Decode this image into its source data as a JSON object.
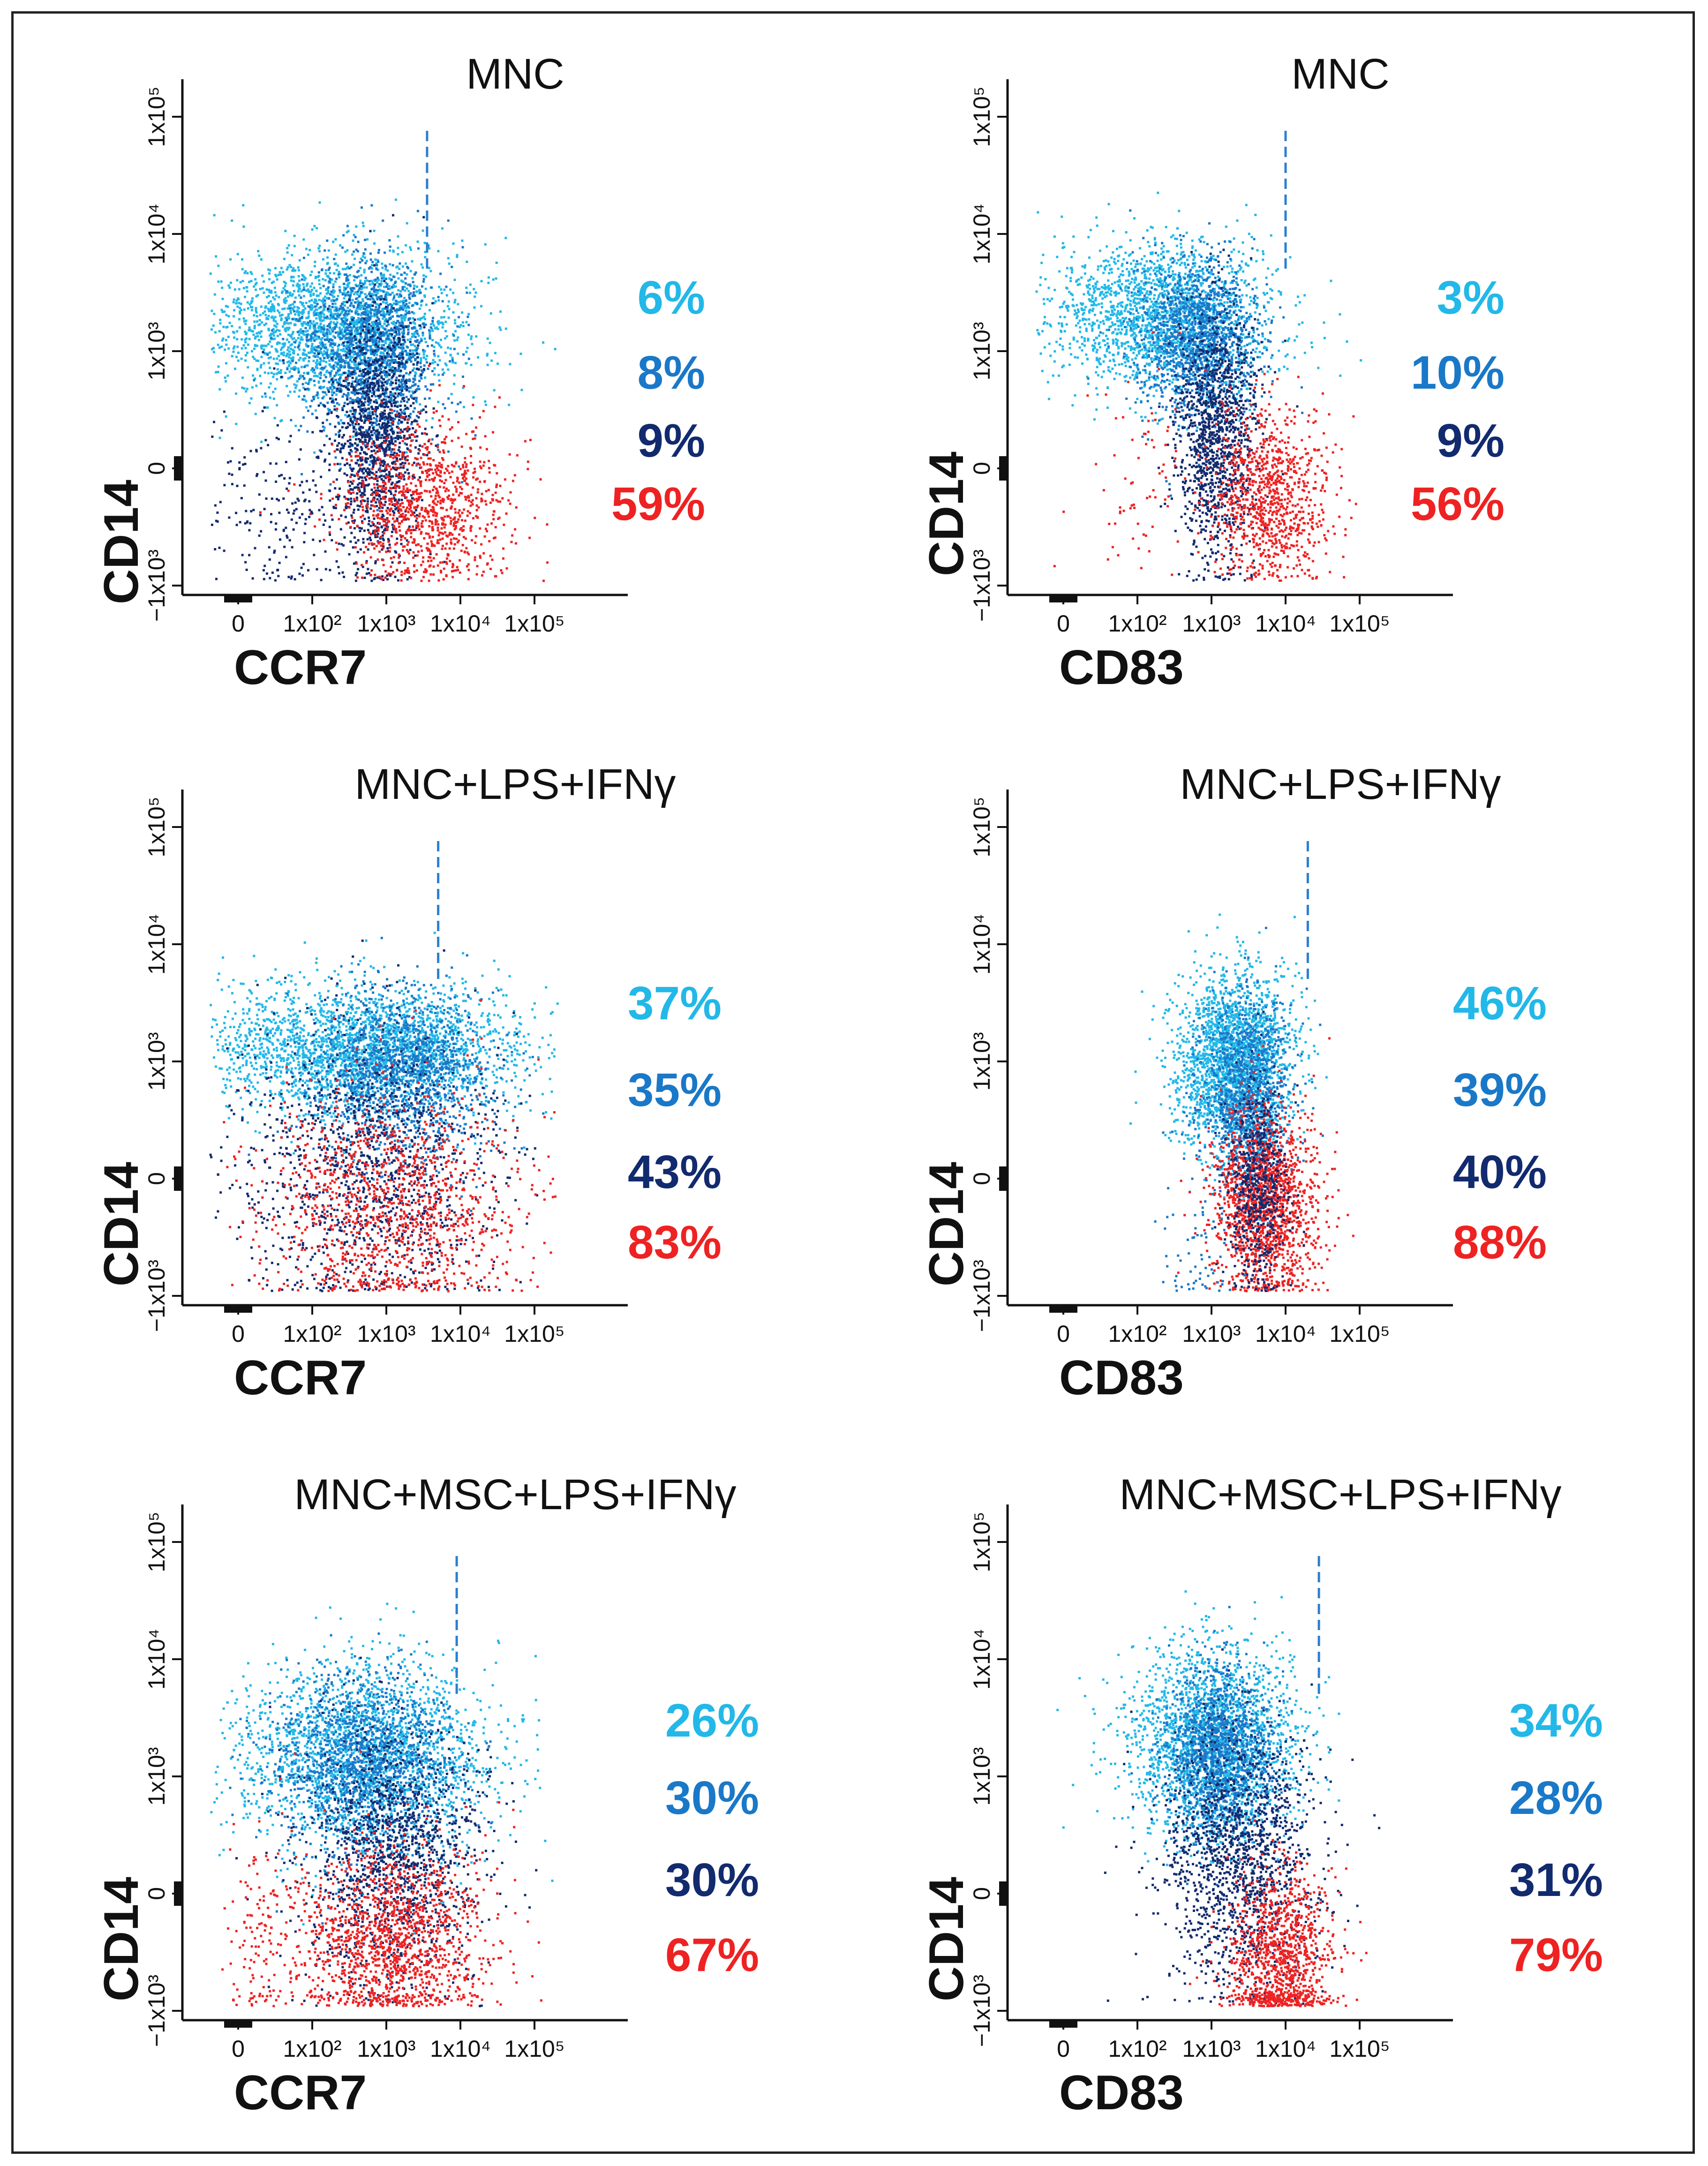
{
  "colors": {
    "light_blue": "#22b8e8",
    "mid_blue": "#1a78c8",
    "navy": "#122a6e",
    "red": "#ee2222",
    "gate_line": "#2a7fd0",
    "axis": "#111111"
  },
  "axis_ticks": {
    "x": [
      "0",
      "1x10²",
      "1x10³",
      "1x10⁴",
      "1x10⁵"
    ],
    "y": [
      "−1x10³",
      "0",
      "1x10³",
      "1x10⁴",
      "1x10⁵"
    ]
  },
  "chart_data": [
    {
      "type": "scatter",
      "title": "MNC",
      "xlabel": "CCR7",
      "ylabel": "CD14",
      "gate_x_decade": 2.55,
      "series": [
        {
          "name": "light blue",
          "color": "light_blue",
          "percent": "6%"
        },
        {
          "name": "mid blue",
          "color": "mid_blue",
          "percent": "8%"
        },
        {
          "name": "navy",
          "color": "navy",
          "percent": "9%"
        },
        {
          "name": "red",
          "color": "red",
          "percent": "59%"
        }
      ]
    },
    {
      "type": "scatter",
      "title": "MNC",
      "xlabel": "CD83",
      "ylabel": "CD14",
      "gate_x_decade": 3.0,
      "series": [
        {
          "name": "light blue",
          "color": "light_blue",
          "percent": "3%"
        },
        {
          "name": "mid blue",
          "color": "mid_blue",
          "percent": "10%"
        },
        {
          "name": "navy",
          "color": "navy",
          "percent": "9%"
        },
        {
          "name": "red",
          "color": "red",
          "percent": "56%"
        }
      ]
    },
    {
      "type": "scatter",
      "title": "MNC+LPS+IFNγ",
      "xlabel": "CCR7",
      "ylabel": "CD14",
      "gate_x_decade": 2.7,
      "series": [
        {
          "name": "light blue",
          "color": "light_blue",
          "percent": "37%"
        },
        {
          "name": "mid blue",
          "color": "mid_blue",
          "percent": "35%"
        },
        {
          "name": "navy",
          "color": "navy",
          "percent": "43%"
        },
        {
          "name": "red",
          "color": "red",
          "percent": "83%"
        }
      ]
    },
    {
      "type": "scatter",
      "title": "MNC+LPS+IFNγ",
      "xlabel": "CD83",
      "ylabel": "CD14",
      "gate_x_decade": 3.3,
      "series": [
        {
          "name": "light blue",
          "color": "light_blue",
          "percent": "46%"
        },
        {
          "name": "mid blue",
          "color": "mid_blue",
          "percent": "39%"
        },
        {
          "name": "navy",
          "color": "navy",
          "percent": "40%"
        },
        {
          "name": "red",
          "color": "red",
          "percent": "88%"
        }
      ]
    },
    {
      "type": "scatter",
      "title": "MNC+MSC+LPS+IFNγ",
      "xlabel": "CCR7",
      "ylabel": "CD14",
      "gate_x_decade": 2.95,
      "series": [
        {
          "name": "light blue",
          "color": "light_blue",
          "percent": "26%"
        },
        {
          "name": "mid blue",
          "color": "mid_blue",
          "percent": "30%"
        },
        {
          "name": "navy",
          "color": "navy",
          "percent": "30%"
        },
        {
          "name": "red",
          "color": "red",
          "percent": "67%"
        }
      ]
    },
    {
      "type": "scatter",
      "title": "MNC+MSC+LPS+IFNγ",
      "xlabel": "CD83",
      "ylabel": "CD14",
      "gate_x_decade": 3.45,
      "series": [
        {
          "name": "light blue",
          "color": "light_blue",
          "percent": "34%"
        },
        {
          "name": "mid blue",
          "color": "mid_blue",
          "percent": "28%"
        },
        {
          "name": "navy",
          "color": "navy",
          "percent": "31%"
        },
        {
          "name": "red",
          "color": "red",
          "percent": "79%"
        }
      ]
    }
  ]
}
